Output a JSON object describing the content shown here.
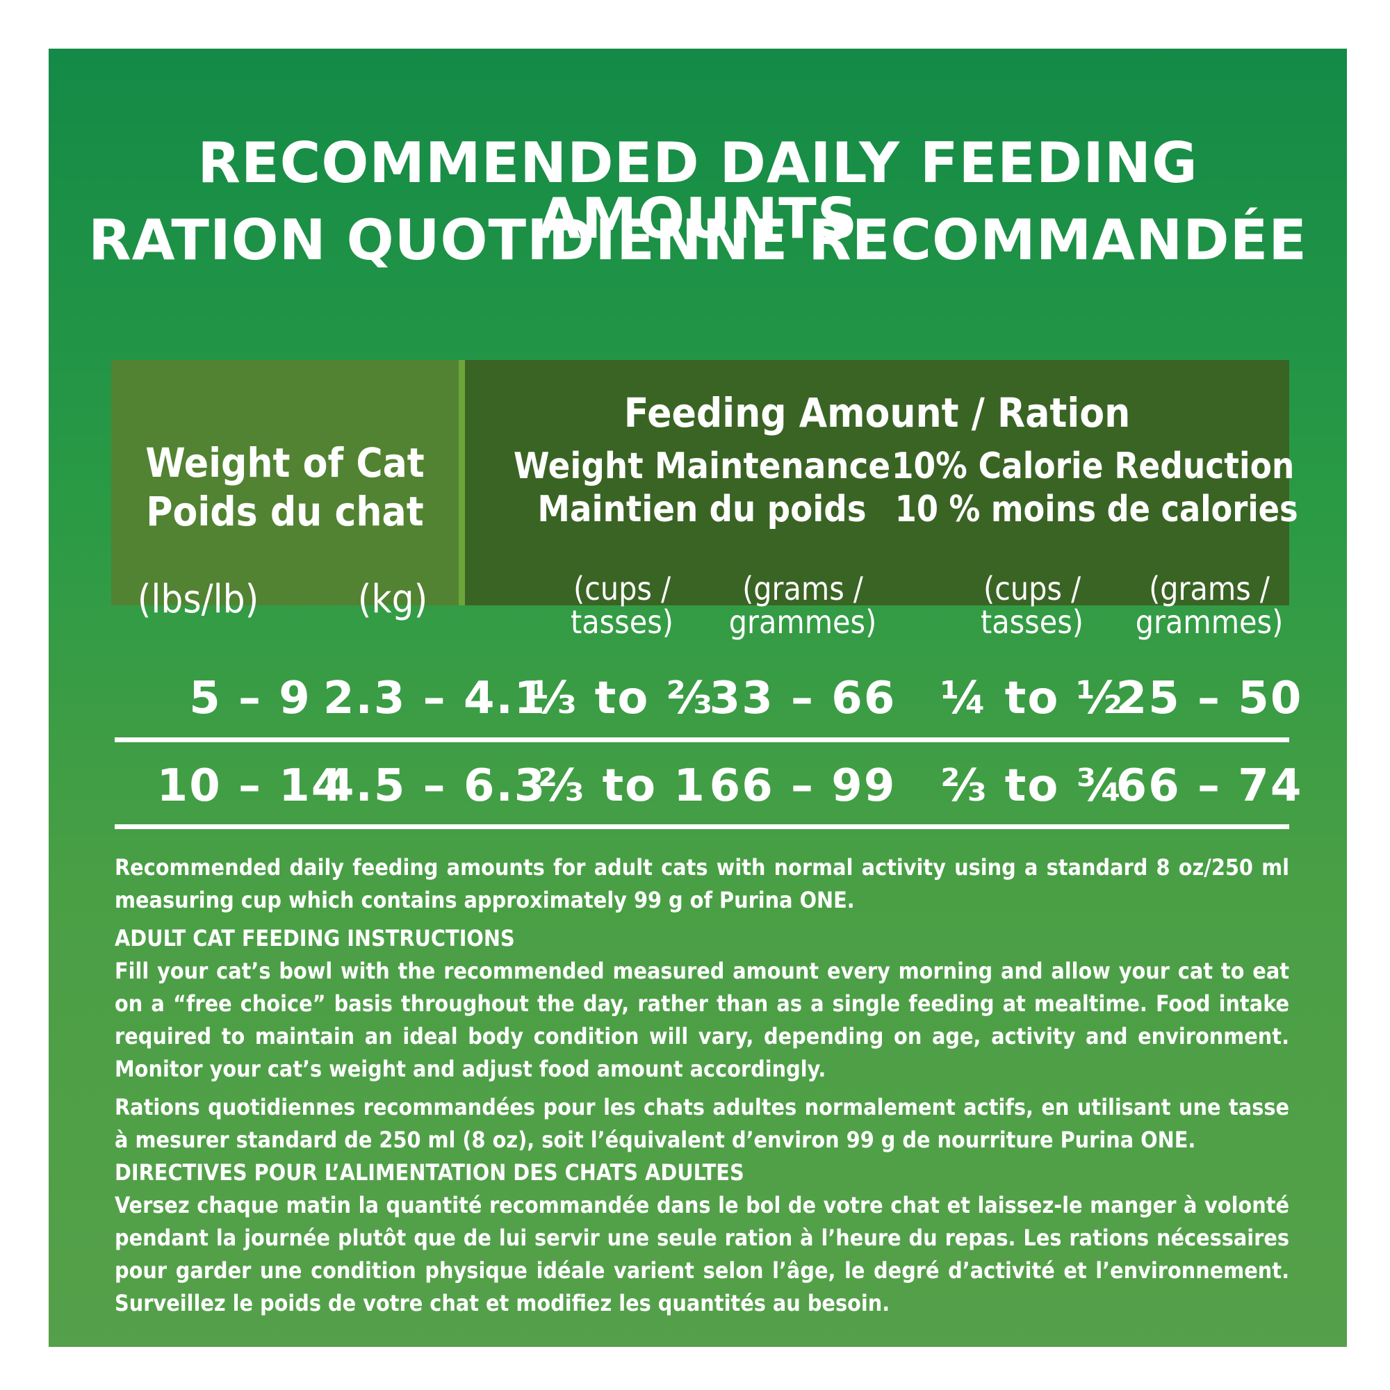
{
  "title": {
    "line1": "RECOMMENDED DAILY FEEDING AMOUNTS",
    "line2": "RATION QUOTIDIENNE RECOMMANDÉE"
  },
  "table": {
    "weight_header": {
      "en": "Weight of Cat",
      "fr": "Poids du chat",
      "unit_lbs": "(lbs/lb)",
      "unit_kg": "(kg)"
    },
    "feeding_header": "Feeding Amount / Ration",
    "maintenance": {
      "en": "Weight Maintenance",
      "fr": "Maintien du poids",
      "cups_1": "(cups /",
      "cups_2": "tasses)",
      "grams_1": "(grams /",
      "grams_2": "grammes)"
    },
    "reduction": {
      "en": "10% Calorie Reduction",
      "fr": "10 % moins de calories",
      "cups_1": "(cups /",
      "cups_2": "tasses)",
      "grams_1": "(grams /",
      "grams_2": "grammes)"
    },
    "rows": [
      {
        "lbs": "5 – 9",
        "kg": "2.3 – 4.1",
        "maint_cups": "⅓ to ⅔",
        "maint_grams": "33 – 66",
        "red_cups": "¼ to ½",
        "red_grams": "25 – 50"
      },
      {
        "lbs": "10 – 14",
        "kg": "4.5 – 6.3",
        "maint_cups": "⅔ to 1",
        "maint_grams": "66 – 99",
        "red_cups": "⅔ to ¾",
        "red_grams": "66 – 74"
      }
    ]
  },
  "notes": {
    "en_intro_a": "Recommended daily feeding amounts for adult cats with normal activity using a standard 8 oz/250 ml measuring cup which contains approximately 99 g of ",
    "en_intro_brand": "Purina ONE",
    "en_intro_b": ".",
    "en_heading": "ADULT CAT FEEDING INSTRUCTIONS",
    "en_body": "Fill your cat’s bowl with the recommended measured amount every morning and allow your cat to eat on a “free choice” basis throughout the day, rather than as a single feeding at mealtime. Food intake required to maintain an ideal body condition will vary, depending on age, activity and environment. Monitor your cat’s weight and adjust food amount accordingly.",
    "fr_intro_a": "Rations quotidiennes recommandées pour les chats adultes normalement actifs, en utilisant une tasse à mesurer standard de 250 ml (8 oz), soit l’équivalent d’environ 99 g de nourriture ",
    "fr_intro_brand": "Purina ONE",
    "fr_intro_b": ".",
    "fr_heading": "DIRECTIVES POUR L’ALIMENTATION DES CHATS ADULTES",
    "fr_body": "Versez chaque matin la quantité recommandée dans le bol de votre chat et laissez-le manger à volonté pendant la journée plutôt que de lui servir une seule ration à l’heure du repas. Les rations nécessaires pour garder une condition physique idéale varient selon l’âge, le degré d’activité et l’environnement. Surveillez le poids de votre chat et modifiez les quantités au besoin."
  }
}
